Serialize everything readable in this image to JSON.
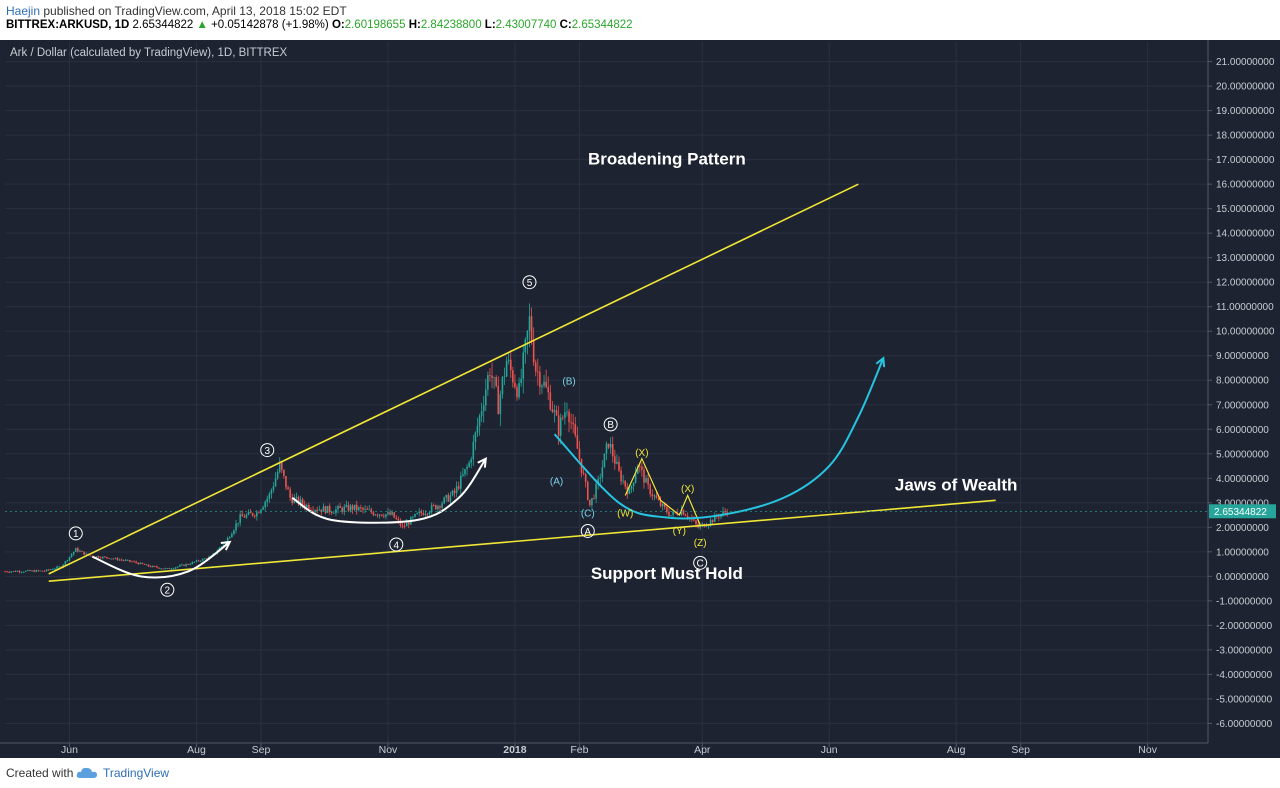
{
  "header": {
    "author": "Haejin",
    "published_text": " published on TradingView.com, April 13, 2018 15:02 EDT",
    "symbol": "BITTREX:ARKUSD, 1D",
    "last": "2.65344822",
    "change": "+0.05142878 (+1.98%)",
    "o_label": "O:",
    "o_value": "2.60198655",
    "h_label": "H:",
    "h_value": "2.84238800",
    "l_label": "L:",
    "l_value": "2.43007740",
    "c_label": "C:",
    "c_value": "2.65344822"
  },
  "footer": {
    "created_with": "Created with",
    "brand": "TradingView"
  },
  "colors": {
    "background": "#1d2330",
    "grid": "#2a3142",
    "axis_text": "#c8ccd4",
    "up_candle": "#26a69a",
    "down_candle": "#ef5350",
    "trendline": "#f0e636",
    "curve_cyan": "#27c4e0",
    "curve_white": "#ffffff",
    "price_tag": "#26a69a"
  },
  "chart_data": {
    "type": "candlestick",
    "title": "Ark / Dollar (calculated by TradingView), 1D, BITTREX",
    "ylim": [
      -6.8,
      21.8
    ],
    "y_ticks": [
      "21.00000000",
      "20.00000000",
      "19.00000000",
      "18.00000000",
      "17.00000000",
      "16.00000000",
      "15.00000000",
      "14.00000000",
      "13.00000000",
      "12.00000000",
      "11.00000000",
      "10.00000000",
      "9.00000000",
      "8.00000000",
      "7.00000000",
      "6.00000000",
      "5.00000000",
      "4.00000000",
      "3.00000000",
      "2.00000000",
      "1.00000000",
      "0.00000000",
      "-1.00000000",
      "-2.00000000",
      "-3.00000000",
      "-4.00000000",
      "-5.00000000",
      "-6.00000000"
    ],
    "x_ticks": [
      "Jun",
      "Aug",
      "Sep",
      "Nov",
      "2018",
      "Feb",
      "Apr",
      "Jun",
      "Aug",
      "Sep",
      "Nov"
    ],
    "x_range": [
      "2017-05-01",
      "2018-11-30"
    ],
    "last_price_label": "2.65344822",
    "price_path": [
      [
        "2017-05-01",
        0.2
      ],
      [
        "2017-05-20",
        0.22
      ],
      [
        "2017-05-28",
        0.4
      ],
      [
        "2017-06-04",
        1.1
      ],
      [
        "2017-06-10",
        0.85
      ],
      [
        "2017-06-20",
        0.75
      ],
      [
        "2017-07-01",
        0.6
      ],
      [
        "2017-07-10",
        0.4
      ],
      [
        "2017-07-18",
        0.3
      ],
      [
        "2017-07-28",
        0.5
      ],
      [
        "2017-08-08",
        0.8
      ],
      [
        "2017-08-15",
        1.4
      ],
      [
        "2017-08-22",
        2.4
      ],
      [
        "2017-08-30",
        2.6
      ],
      [
        "2017-09-05",
        3.3
      ],
      [
        "2017-09-10",
        4.5
      ],
      [
        "2017-09-15",
        3.2
      ],
      [
        "2017-09-25",
        2.8
      ],
      [
        "2017-10-05",
        2.7
      ],
      [
        "2017-10-15",
        2.8
      ],
      [
        "2017-10-25",
        2.6
      ],
      [
        "2017-11-03",
        2.5
      ],
      [
        "2017-11-08",
        2.0
      ],
      [
        "2017-11-15",
        2.5
      ],
      [
        "2017-11-25",
        2.9
      ],
      [
        "2017-12-03",
        3.4
      ],
      [
        "2017-12-10",
        4.6
      ],
      [
        "2017-12-15",
        6.5
      ],
      [
        "2017-12-20",
        8.5
      ],
      [
        "2017-12-24",
        7.0
      ],
      [
        "2017-12-28",
        8.8
      ],
      [
        "2018-01-03",
        7.5
      ],
      [
        "2018-01-08",
        10.4
      ],
      [
        "2018-01-11",
        8.5
      ],
      [
        "2018-01-14",
        8.0
      ],
      [
        "2018-01-18",
        7.2
      ],
      [
        "2018-01-22",
        6.0
      ],
      [
        "2018-01-26",
        7.0
      ],
      [
        "2018-01-31",
        5.2
      ],
      [
        "2018-02-06",
        2.9
      ],
      [
        "2018-02-10",
        3.8
      ],
      [
        "2018-02-15",
        5.5
      ],
      [
        "2018-02-20",
        4.2
      ],
      [
        "2018-02-25",
        3.4
      ],
      [
        "2018-03-01",
        4.6
      ],
      [
        "2018-03-06",
        3.6
      ],
      [
        "2018-03-12",
        2.9
      ],
      [
        "2018-03-17",
        2.5
      ],
      [
        "2018-03-22",
        2.7
      ],
      [
        "2018-03-26",
        2.4
      ],
      [
        "2018-03-30",
        2.0
      ],
      [
        "2018-04-04",
        2.2
      ],
      [
        "2018-04-09",
        2.5
      ],
      [
        "2018-04-13",
        2.65
      ]
    ],
    "annotations": [
      {
        "type": "text",
        "label": "Broadening Pattern",
        "x": "2018-03-15",
        "y": 16.8
      },
      {
        "type": "text",
        "label": "Jaws of Wealth",
        "x": "2018-08-01",
        "y": 3.5
      },
      {
        "type": "text",
        "label": "Support Must Hold",
        "x": "2018-03-15",
        "y": -0.1
      },
      {
        "type": "line",
        "name": "upper-trendline",
        "from": [
          "2017-05-22",
          0.1
        ],
        "to": [
          "2018-06-15",
          16.0
        ]
      },
      {
        "type": "line",
        "name": "lower-trendline",
        "from": [
          "2017-05-22",
          -0.2
        ],
        "to": [
          "2018-08-20",
          3.1
        ]
      }
    ],
    "wave_labels": [
      {
        "label": "1",
        "style": "circle",
        "x": "2017-06-04",
        "y": 1.75
      },
      {
        "label": "2",
        "style": "circle",
        "x": "2017-07-18",
        "y": -0.55
      },
      {
        "label": "3",
        "style": "circle",
        "x": "2017-09-04",
        "y": 5.15
      },
      {
        "label": "4",
        "style": "circle",
        "x": "2017-11-05",
        "y": 1.3
      },
      {
        "label": "5",
        "style": "circle",
        "x": "2018-01-08",
        "y": 12.0
      },
      {
        "label": "A",
        "style": "circle",
        "x": "2018-02-05",
        "y": 1.85
      },
      {
        "label": "B",
        "style": "circle",
        "x": "2018-02-16",
        "y": 6.2
      },
      {
        "label": "C",
        "style": "circle",
        "x": "2018-03-31",
        "y": 0.55
      },
      {
        "label": "(A)",
        "style": "paren",
        "x": "2018-01-21",
        "y": 3.9
      },
      {
        "label": "(B)",
        "style": "paren",
        "x": "2018-01-27",
        "y": 7.98
      },
      {
        "label": "(C)",
        "style": "paren",
        "x": "2018-02-05",
        "y": 2.6
      },
      {
        "label": "(W)",
        "style": "paren",
        "x": "2018-02-23",
        "y": 2.6
      },
      {
        "label": "(X)",
        "style": "paren",
        "x": "2018-03-03",
        "y": 5.08
      },
      {
        "label": "(Y)",
        "style": "paren",
        "x": "2018-03-21",
        "y": 1.9
      },
      {
        "label": "(X)",
        "style": "paren",
        "x": "2018-03-25",
        "y": 3.6
      },
      {
        "label": "(Z)",
        "style": "paren",
        "x": "2018-03-31",
        "y": 1.4
      }
    ],
    "curves": [
      {
        "name": "cyan-projection",
        "color": "cyan",
        "points": [
          [
            "2018-01-20",
            5.8
          ],
          [
            "2018-02-20",
            3.0
          ],
          [
            "2018-03-15",
            2.4
          ],
          [
            "2018-04-10",
            2.5
          ],
          [
            "2018-05-10",
            3.2
          ],
          [
            "2018-06-01",
            4.5
          ],
          [
            "2018-06-15",
            6.5
          ],
          [
            "2018-06-27",
            8.9
          ]
        ]
      },
      {
        "name": "white-arc-1",
        "color": "white",
        "points": [
          [
            "2017-06-12",
            0.8
          ],
          [
            "2017-07-05",
            0.0
          ],
          [
            "2017-07-28",
            0.2
          ],
          [
            "2017-08-17",
            1.4
          ]
        ]
      },
      {
        "name": "white-arc-2",
        "color": "white",
        "points": [
          [
            "2017-09-16",
            3.2
          ],
          [
            "2017-10-05",
            2.3
          ],
          [
            "2017-11-15",
            2.3
          ],
          [
            "2017-12-05",
            3.2
          ],
          [
            "2017-12-18",
            4.8
          ]
        ]
      }
    ]
  }
}
